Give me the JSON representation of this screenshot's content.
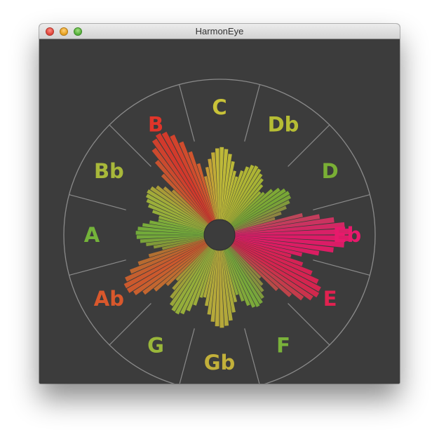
{
  "window": {
    "title": "HarmonEye"
  },
  "colors": {
    "background": "#3c3c3c",
    "ring": "#8a8a8a",
    "hub": "#3c3c3c"
  },
  "notes": [
    {
      "name": "C",
      "color": "#c9c338",
      "level": 0.55
    },
    {
      "name": "Db",
      "color": "#b6bd34",
      "level": 0.48
    },
    {
      "name": "D",
      "color": "#7aaf35",
      "level": 0.45
    },
    {
      "name": "Eb",
      "color": "#e8196c",
      "level": 0.9
    },
    {
      "name": "E",
      "color": "#e02250",
      "level": 0.78
    },
    {
      "name": "F",
      "color": "#7ab23a",
      "level": 0.5
    },
    {
      "name": "Gb",
      "color": "#c2b03a",
      "level": 0.62
    },
    {
      "name": "G",
      "color": "#9ab73a",
      "level": 0.52
    },
    {
      "name": "Ab",
      "color": "#d9582c",
      "level": 0.68
    },
    {
      "name": "A",
      "color": "#74b33a",
      "level": 0.48
    },
    {
      "name": "Bb",
      "color": "#a8b83a",
      "level": 0.56
    },
    {
      "name": "B",
      "color": "#e0352a",
      "level": 0.86
    }
  ]
}
